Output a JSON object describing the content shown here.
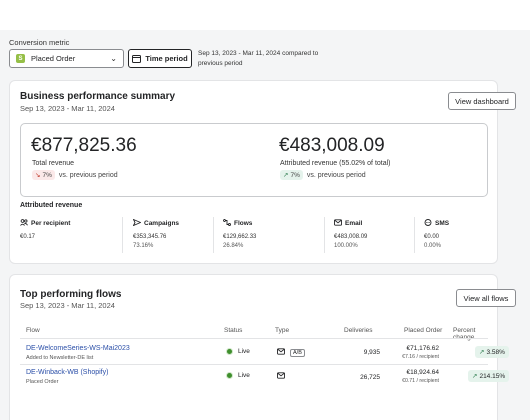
{
  "header": {
    "metric_label": "Conversion metric",
    "metric_value": "Placed Order",
    "time_button": "Time period",
    "compare_text": "Sep 13, 2023 - Mar 11, 2024 compared to previous period"
  },
  "summary": {
    "title": "Business performance summary",
    "date_range": "Sep 13, 2023 - Mar 11, 2024",
    "view_button": "View dashboard",
    "total_revenue": "€877,825.36",
    "total_label": "Total revenue",
    "total_trend": "7%",
    "total_trend_suffix": "vs. previous period",
    "attributed_revenue": "€483,008.09",
    "attributed_label": "Attributed revenue (55.02% of total)",
    "attributed_trend": "7%",
    "attributed_trend_suffix": "vs. previous period",
    "attributed_section_title": "Attributed revenue",
    "columns": [
      {
        "label": "Per recipient",
        "value": "€0.17",
        "pct": ""
      },
      {
        "label": "Campaigns",
        "value": "€353,345.76",
        "pct": "73.16%"
      },
      {
        "label": "Flows",
        "value": "€129,662.33",
        "pct": "26.84%"
      },
      {
        "label": "Email",
        "value": "€483,008.09",
        "pct": "100.00%"
      },
      {
        "label": "SMS",
        "value": "€0.00",
        "pct": "0.00%"
      }
    ]
  },
  "flows": {
    "title": "Top performing flows",
    "date_range": "Sep 13, 2023 - Mar 11, 2024",
    "view_button": "View all flows",
    "headers": [
      "Flow",
      "Status",
      "Type",
      "Deliveries",
      "Placed Order",
      "Percent change"
    ],
    "rows": [
      {
        "name": "DE-WelcomeSeries-WS-Mai2023",
        "sub": "Added to Newsletter-DE list",
        "status": "Live",
        "tag": "A/B",
        "deliveries": "9,935",
        "order": "€71,176.62",
        "order_sub": "€7.16 / recipient",
        "change": "3.58%"
      },
      {
        "name": "DE-Winback-WB (Shopify)",
        "sub": "Placed Order",
        "status": "Live",
        "tag": "",
        "deliveries": "26,725",
        "order": "€18,924.64",
        "order_sub": "€0.71 / recipient",
        "change": "214.15%"
      }
    ]
  },
  "colors": {
    "accent_link": "#2b4fa8",
    "status_live": "#3f8f2d",
    "trend_up_bg": "#e5f3ec",
    "trend_down_bg": "#fbe9e9",
    "trend_down_arrow": "#c0392b",
    "trend_up_arrow": "#2e7d4f"
  }
}
